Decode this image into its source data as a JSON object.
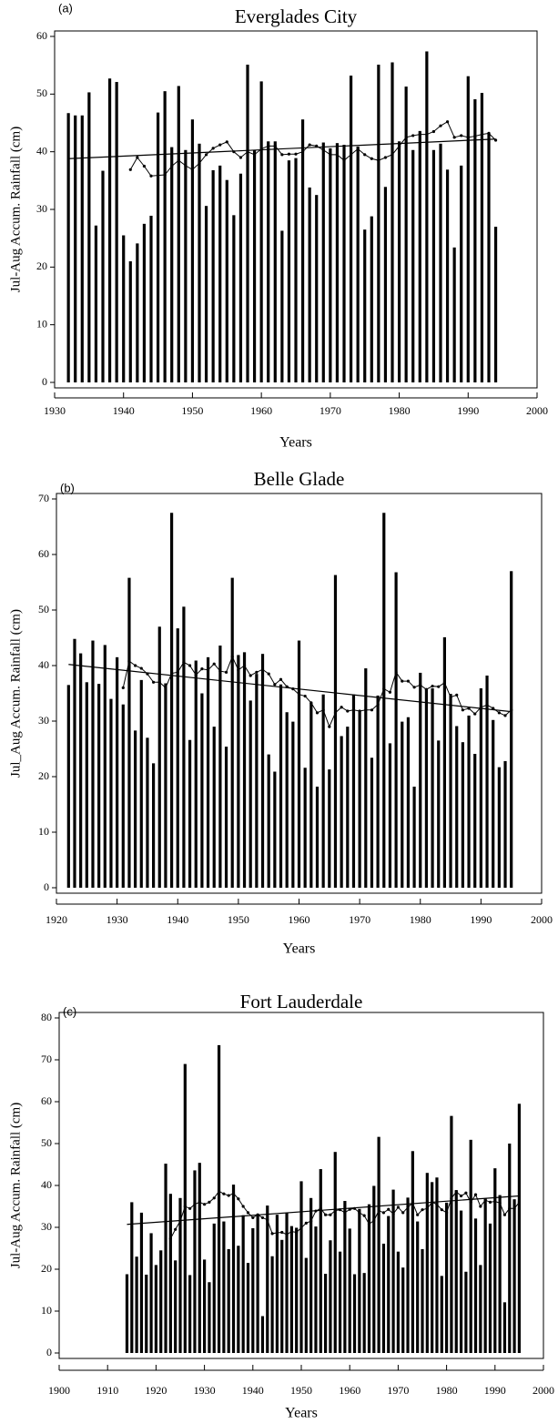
{
  "chart_data": [
    {
      "type": "bar",
      "panel_label": "(a)",
      "title": "Everglades City",
      "xlabel": "Years",
      "ylabel": "Jul-Aug Accum. Rainfall (cm)",
      "xlim": [
        1930,
        2000
      ],
      "xticks": [
        1930,
        1940,
        1950,
        1960,
        1970,
        1980,
        1990,
        2000
      ],
      "ylim": [
        0,
        60
      ],
      "yticks": [
        0,
        10,
        20,
        30,
        40,
        50,
        60
      ],
      "series": [
        {
          "type": "bar",
          "color": "#000000",
          "x": [
            1932,
            1933,
            1934,
            1935,
            1936,
            1937,
            1938,
            1939,
            1940,
            1941,
            1942,
            1943,
            1944,
            1945,
            1946,
            1947,
            1948,
            1949,
            1950,
            1951,
            1952,
            1953,
            1954,
            1955,
            1956,
            1957,
            1958,
            1959,
            1960,
            1961,
            1962,
            1963,
            1964,
            1965,
            1966,
            1967,
            1968,
            1969,
            1970,
            1971,
            1972,
            1973,
            1974,
            1975,
            1976,
            1977,
            1978,
            1979,
            1980,
            1981,
            1982,
            1983,
            1984,
            1985,
            1986,
            1987,
            1988,
            1989,
            1990,
            1991,
            1992,
            1993,
            1994
          ],
          "values": [
            46.7,
            46.3,
            46.3,
            50.3,
            27.2,
            36.7,
            52.7,
            52.1,
            25.5,
            21,
            24.1,
            27.5,
            28.9,
            46.8,
            50.5,
            40.8,
            51.4,
            40.3,
            45.6,
            41.4,
            30.6,
            36.8,
            37.6,
            35.1,
            29,
            36.2,
            55.1,
            40.3,
            52.2,
            41.8,
            41.8,
            26.3,
            38.5,
            38.9,
            45.6,
            33.8,
            32.5,
            41.6,
            40.6,
            41.5,
            41.2,
            53.2,
            40.9,
            26.5,
            28.8,
            55.1,
            33.9,
            55.5,
            41.8,
            51.3,
            40.3,
            43.6,
            57.4,
            40.3,
            41.4,
            36.9,
            23.4,
            37.6,
            53.1,
            49.1,
            50.2,
            43.3,
            27
          ]
        },
        {
          "type": "line",
          "color": "#000000",
          "marker": true,
          "x": [
            1941,
            1942,
            1943,
            1944,
            1945,
            1946,
            1947,
            1948,
            1949,
            1950,
            1951,
            1952,
            1953,
            1954,
            1955,
            1956,
            1957,
            1958,
            1959,
            1960,
            1961,
            1962,
            1963,
            1964,
            1965,
            1966,
            1967,
            1968,
            1969,
            1970,
            1971,
            1972,
            1973,
            1974,
            1975,
            1976,
            1977,
            1978,
            1979,
            1980,
            1981,
            1982,
            1983,
            1984,
            1985,
            1986,
            1987,
            1988,
            1989,
            1990,
            1991,
            1992,
            1993,
            1994
          ],
          "values": [
            36.9,
            39,
            37.5,
            35.8,
            35.9,
            36,
            37.5,
            38.5,
            37.6,
            36.9,
            38,
            39.5,
            40.6,
            41.2,
            41.7,
            40,
            39,
            40,
            39.5,
            40.5,
            41,
            41,
            39.5,
            39.6,
            39.6,
            40,
            41.2,
            41,
            40.3,
            39.5,
            39.5,
            38.5,
            39.5,
            40.5,
            39.5,
            38.8,
            38.5,
            39,
            39.5,
            41,
            42.5,
            42.8,
            43,
            43,
            43.5,
            44.5,
            45.2,
            42.5,
            42.8,
            42.5,
            42.7,
            43,
            43.2,
            42
          ]
        },
        {
          "type": "line",
          "color": "#000000",
          "marker": false,
          "x": [
            1932,
            1994
          ],
          "values": [
            38.8,
            42.2
          ]
        }
      ]
    },
    {
      "type": "bar",
      "panel_label": "(b)",
      "title": "Belle Glade",
      "xlabel": "Years",
      "ylabel": "Jul_Aug Accum. Rainfall (cm)",
      "xlim": [
        1920,
        2000
      ],
      "xticks": [
        1920,
        1930,
        1940,
        1950,
        1960,
        1970,
        1980,
        1990,
        2000
      ],
      "ylim": [
        0,
        70
      ],
      "yticks": [
        0,
        10,
        20,
        30,
        40,
        50,
        60,
        70
      ],
      "series": [
        {
          "type": "bar",
          "color": "#000000",
          "x": [
            1922,
            1923,
            1924,
            1925,
            1926,
            1927,
            1928,
            1929,
            1930,
            1931,
            1932,
            1933,
            1934,
            1935,
            1936,
            1937,
            1938,
            1939,
            1940,
            1941,
            1942,
            1943,
            1944,
            1945,
            1946,
            1947,
            1948,
            1949,
            1950,
            1951,
            1952,
            1953,
            1954,
            1955,
            1956,
            1957,
            1958,
            1959,
            1960,
            1961,
            1962,
            1963,
            1964,
            1965,
            1966,
            1967,
            1968,
            1969,
            1970,
            1971,
            1972,
            1973,
            1974,
            1975,
            1976,
            1977,
            1978,
            1979,
            1980,
            1981,
            1982,
            1983,
            1984,
            1985,
            1986,
            1987,
            1988,
            1989,
            1990,
            1991,
            1992,
            1993,
            1994,
            1995
          ],
          "values": [
            36.5,
            44.8,
            42.2,
            37,
            44.5,
            36.7,
            43.7,
            34,
            41.5,
            33,
            55.8,
            28.3,
            37.4,
            27,
            22.4,
            47,
            36.8,
            67.5,
            46.7,
            50.6,
            26.6,
            40.9,
            35,
            41.5,
            29,
            43.6,
            25.4,
            55.8,
            41.9,
            42.4,
            33.7,
            38.5,
            42.1,
            24,
            20.9,
            36.6,
            31.6,
            29.9,
            44.5,
            21.6,
            33.3,
            18.2,
            34.8,
            21.3,
            56.3,
            27.3,
            29,
            34.8,
            31.8,
            39.5,
            23.4,
            34.6,
            67.5,
            26,
            56.8,
            29.9,
            30.7,
            18.2,
            38.7,
            35.9,
            35.9,
            26.5,
            45.1,
            34.9,
            29.1,
            26.2,
            31,
            24.1,
            35.9,
            38.2,
            30.2,
            21.7,
            22.8,
            57
          ]
        },
        {
          "type": "line",
          "color": "#000000",
          "marker": true,
          "x": [
            1931,
            1932,
            1933,
            1934,
            1935,
            1936,
            1937,
            1938,
            1939,
            1940,
            1941,
            1942,
            1943,
            1944,
            1945,
            1946,
            1947,
            1948,
            1949,
            1950,
            1951,
            1952,
            1953,
            1954,
            1955,
            1956,
            1957,
            1958,
            1959,
            1960,
            1961,
            1962,
            1963,
            1964,
            1965,
            1966,
            1967,
            1968,
            1969,
            1970,
            1971,
            1972,
            1973,
            1974,
            1975,
            1976,
            1977,
            1978,
            1979,
            1980,
            1981,
            1982,
            1983,
            1984,
            1985,
            1986,
            1987,
            1988,
            1989,
            1990,
            1991,
            1992,
            1993,
            1994,
            1995
          ],
          "values": [
            36,
            40.8,
            40,
            39.5,
            38.5,
            37,
            37,
            36,
            38.6,
            38.8,
            40.6,
            40,
            38.3,
            39.4,
            39.2,
            40.3,
            39,
            38.8,
            41.6,
            39.2,
            40,
            38.2,
            38.8,
            39.3,
            38.5,
            36.6,
            37.5,
            36.2,
            35.8,
            34.8,
            34.5,
            33.3,
            31.5,
            32,
            29,
            31.5,
            32.5,
            31.8,
            32,
            31.8,
            32,
            32,
            33,
            35.8,
            35.2,
            38.8,
            37.2,
            37.2,
            36.1,
            36.5,
            35.7,
            36.3,
            36.2,
            36.9,
            34.3,
            34.7,
            32,
            32.3,
            31.3,
            32.5,
            32.9,
            32.3,
            31.5,
            31,
            32
          ]
        },
        {
          "type": "line",
          "color": "#000000",
          "marker": false,
          "x": [
            1922,
            1995
          ],
          "values": [
            40.2,
            31.7
          ]
        }
      ]
    },
    {
      "type": "bar",
      "panel_label": "(c)",
      "title": "Fort Lauderdale",
      "xlabel": "Years",
      "ylabel": "Jul-Aug Accum. Rainfall (cm)",
      "xlim": [
        1900,
        2000
      ],
      "xticks": [
        1900,
        1910,
        1920,
        1930,
        1940,
        1950,
        1960,
        1970,
        1980,
        1990,
        2000
      ],
      "ylim": [
        0,
        80
      ],
      "yticks": [
        0,
        10,
        20,
        30,
        40,
        50,
        60,
        70,
        80
      ],
      "series": [
        {
          "type": "bar",
          "color": "#000000",
          "x": [
            1914,
            1915,
            1916,
            1917,
            1918,
            1919,
            1920,
            1921,
            1922,
            1923,
            1924,
            1925,
            1926,
            1927,
            1928,
            1929,
            1930,
            1931,
            1932,
            1933,
            1934,
            1935,
            1936,
            1937,
            1938,
            1939,
            1940,
            1941,
            1942,
            1943,
            1944,
            1945,
            1946,
            1947,
            1948,
            1949,
            1950,
            1951,
            1952,
            1953,
            1954,
            1955,
            1956,
            1957,
            1958,
            1959,
            1960,
            1961,
            1962,
            1963,
            1964,
            1965,
            1966,
            1967,
            1968,
            1969,
            1970,
            1971,
            1972,
            1973,
            1974,
            1975,
            1976,
            1977,
            1978,
            1979,
            1980,
            1981,
            1982,
            1983,
            1984,
            1985,
            1986,
            1987,
            1988,
            1989,
            1990,
            1991,
            1992,
            1993,
            1994,
            1995
          ],
          "values": [
            18.8,
            36,
            23,
            33.5,
            18.7,
            28.6,
            21,
            24.5,
            45.2,
            38,
            22.1,
            37,
            69,
            18.6,
            43.6,
            45.4,
            22.3,
            16.9,
            30.9,
            73.5,
            31.4,
            24.8,
            40.2,
            25.6,
            32.9,
            21.5,
            29.8,
            33.2,
            8.8,
            35.2,
            23.1,
            33,
            27,
            33.5,
            30.3,
            29.9,
            41,
            22.7,
            37,
            30.2,
            43.9,
            18.9,
            26.9,
            48,
            24.2,
            36.3,
            29.7,
            18.8,
            34.4,
            19.1,
            35.5,
            39.9,
            51.6,
            26.1,
            32.7,
            39,
            24.2,
            20.4,
            37.1,
            48.2,
            31.4,
            24.8,
            43,
            40.8,
            41.9,
            18.4,
            35.9,
            56.6,
            38.9,
            34,
            19.4,
            50.9,
            32.1,
            21,
            36.9,
            30.9,
            44.1,
            37.7,
            12.1,
            50,
            36.7,
            59.5
          ]
        },
        {
          "type": "line",
          "color": "#000000",
          "marker": true,
          "x": [
            1923,
            1924,
            1925,
            1926,
            1927,
            1928,
            1929,
            1930,
            1931,
            1932,
            1933,
            1934,
            1935,
            1936,
            1937,
            1938,
            1939,
            1940,
            1941,
            1942,
            1943,
            1944,
            1945,
            1946,
            1947,
            1948,
            1949,
            1950,
            1951,
            1952,
            1953,
            1954,
            1955,
            1956,
            1957,
            1958,
            1959,
            1960,
            1961,
            1962,
            1963,
            1964,
            1965,
            1966,
            1967,
            1968,
            1969,
            1970,
            1971,
            1972,
            1973,
            1974,
            1975,
            1976,
            1977,
            1978,
            1979,
            1980,
            1981,
            1982,
            1983,
            1984,
            1985,
            1986,
            1987,
            1988,
            1989,
            1990,
            1991,
            1992,
            1993,
            1994,
            1995
          ],
          "values": [
            27.3,
            29.5,
            31.5,
            35,
            34.5,
            35.5,
            36,
            35.5,
            36,
            37,
            38.6,
            38,
            37.6,
            38.1,
            36.8,
            35,
            33.5,
            32.3,
            33,
            32.3,
            31.8,
            28.5,
            28.7,
            28.8,
            28.3,
            29,
            28.8,
            29.9,
            31,
            31.5,
            33.9,
            34.5,
            33,
            33,
            34,
            34.2,
            33.5,
            34.3,
            34.5,
            33.5,
            32.8,
            30.8,
            31.6,
            34,
            33.5,
            34.3,
            33.2,
            34.8,
            33.5,
            34.8,
            35.8,
            33,
            34.2,
            34.5,
            36,
            35.5,
            34.2,
            33.5,
            36.9,
            38.5,
            37.5,
            38.2,
            36,
            37.8,
            35,
            36.5,
            36,
            36.2,
            35.8,
            33,
            34.5,
            34.5,
            36
          ]
        },
        {
          "type": "line",
          "color": "#000000",
          "marker": false,
          "x": [
            1914,
            1995
          ],
          "values": [
            30.7,
            37.5
          ]
        }
      ]
    }
  ]
}
